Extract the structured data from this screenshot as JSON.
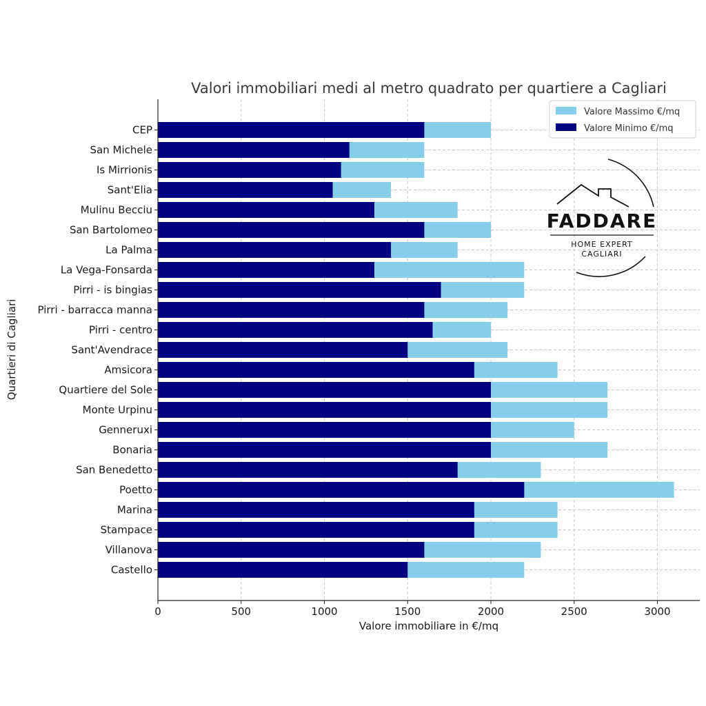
{
  "chart_data": {
    "type": "bar",
    "orientation": "horizontal",
    "title": "Valori immobiliari medi al metro quadrato per quartiere a Cagliari",
    "xlabel": "Valore immobiliare in €/mq",
    "ylabel": "Quartieri di Cagliari",
    "xlim": [
      0,
      3250
    ],
    "xticks": [
      0,
      500,
      1000,
      1500,
      2000,
      2500,
      3000
    ],
    "grid": true,
    "legend_position": "top-right",
    "categories": [
      "CEP",
      "San Michele",
      "Is Mirrionis",
      "Sant'Elia",
      "Mulinu Becciu",
      "San Bartolomeo",
      "La Palma",
      "La Vega-Fonsarda",
      "Pirri - is bingias",
      "Pirri - barracca manna",
      "Pirri - centro",
      "Sant'Avendrace",
      "Amsicora",
      "Quartiere del Sole",
      "Monte Urpinu",
      "Genneruxi",
      "Bonaria",
      "San Benedetto",
      "Poetto",
      "Marina",
      "Stampace",
      "Villanova",
      "Castello"
    ],
    "series": [
      {
        "name": "Valore Massimo €/mq",
        "color": "#87ceeb",
        "values": [
          2000,
          1600,
          1600,
          1400,
          1800,
          2000,
          1800,
          2200,
          2200,
          2100,
          2000,
          2100,
          2400,
          2700,
          2700,
          2500,
          2700,
          2300,
          3100,
          2400,
          2400,
          2300,
          2200
        ]
      },
      {
        "name": "Valore Minimo €/mq",
        "color": "#000080",
        "values": [
          1600,
          1150,
          1100,
          1050,
          1300,
          1600,
          1400,
          1300,
          1700,
          1600,
          1650,
          1500,
          1900,
          2000,
          2000,
          2000,
          2000,
          1800,
          2200,
          1900,
          1900,
          1600,
          1500
        ]
      }
    ]
  },
  "logo": {
    "brand": "FADDARE",
    "tagline_1": "HOME EXPERT",
    "tagline_2": "CAGLIARI"
  }
}
